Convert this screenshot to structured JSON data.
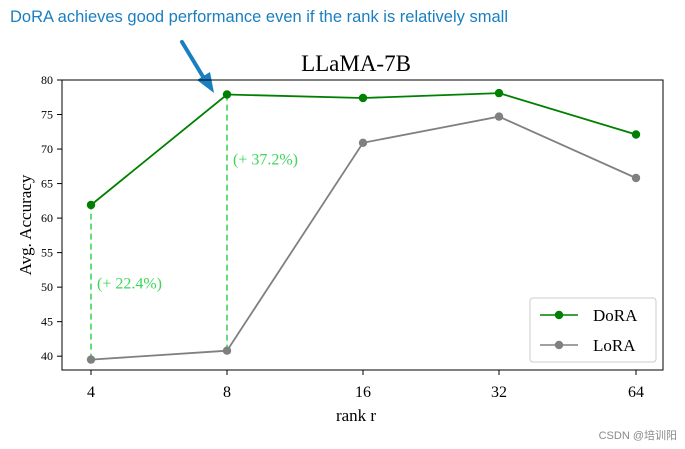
{
  "headline": "DoRA achieves good performance even if the rank is relatively small",
  "watermark": "CSDN @培训阳",
  "colors": {
    "headline": "#1a7fc0",
    "arrow": "#1a7fc0",
    "dora": "#008000",
    "lora": "#808080",
    "gain": "#3cd65a"
  },
  "chart_data": {
    "type": "line",
    "title": "LLaMA-7B",
    "xlabel": "rank r",
    "ylabel": "Avg. Accuracy",
    "categories": [
      "4",
      "8",
      "16",
      "32",
      "64"
    ],
    "ylim": [
      38,
      80
    ],
    "yticks": [
      40,
      45,
      50,
      55,
      60,
      65,
      70,
      75,
      80
    ],
    "grid": false,
    "legend_position": "bottom-right",
    "series": [
      {
        "name": "DoRA",
        "color": "#008000",
        "values": [
          61.9,
          77.9,
          77.4,
          78.1,
          72.1
        ]
      },
      {
        "name": "LoRA",
        "color": "#808080",
        "values": [
          39.5,
          40.8,
          70.9,
          74.7,
          65.8
        ]
      }
    ],
    "annotations": [
      {
        "category": "4",
        "text": "(+ 22.4%)",
        "from": 39.5,
        "to": 61.9
      },
      {
        "category": "8",
        "text": "(+ 37.2%)",
        "from": 40.8,
        "to": 77.9
      }
    ]
  }
}
